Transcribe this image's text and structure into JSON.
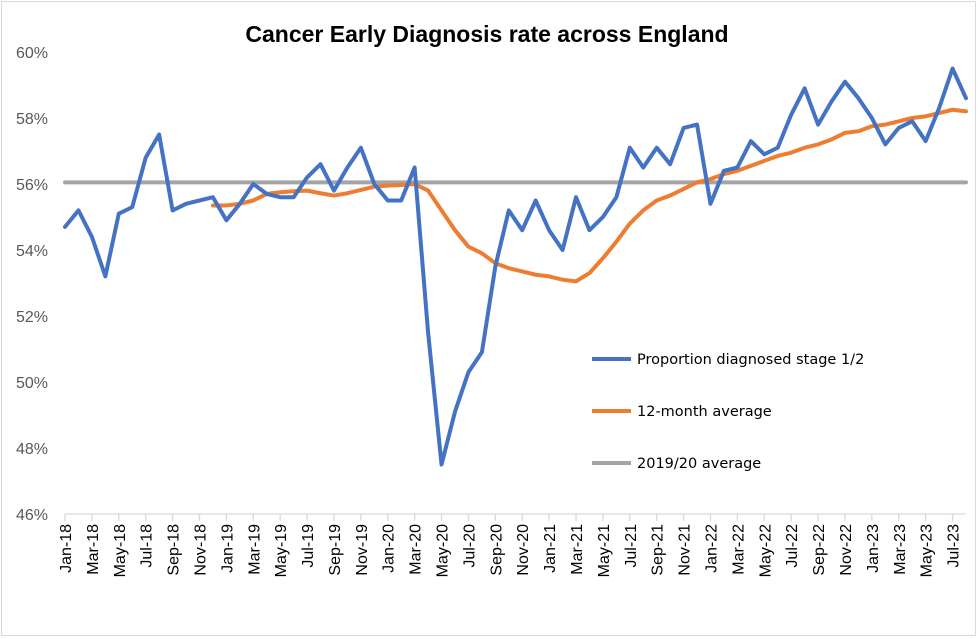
{
  "chart_data": {
    "type": "line",
    "title": "Cancer Early Diagnosis rate across England",
    "xlabel": "",
    "ylabel": "",
    "ylim": [
      46,
      60
    ],
    "yticks": [
      "46%",
      "48%",
      "50%",
      "52%",
      "54%",
      "56%",
      "58%",
      "60%"
    ],
    "ytick_values": [
      46,
      48,
      50,
      52,
      54,
      56,
      58,
      60
    ],
    "x": [
      "Jan-18",
      "Feb-18",
      "Mar-18",
      "Apr-18",
      "May-18",
      "Jun-18",
      "Jul-18",
      "Aug-18",
      "Sep-18",
      "Oct-18",
      "Nov-18",
      "Dec-18",
      "Jan-19",
      "Feb-19",
      "Mar-19",
      "Apr-19",
      "May-19",
      "Jun-19",
      "Jul-19",
      "Aug-19",
      "Sep-19",
      "Oct-19",
      "Nov-19",
      "Dec-19",
      "Jan-20",
      "Feb-20",
      "Mar-20",
      "Apr-20",
      "May-20",
      "Jun-20",
      "Jul-20",
      "Aug-20",
      "Sep-20",
      "Oct-20",
      "Nov-20",
      "Dec-20",
      "Jan-21",
      "Feb-21",
      "Mar-21",
      "Apr-21",
      "May-21",
      "Jun-21",
      "Jul-21",
      "Aug-21",
      "Sep-21",
      "Oct-21",
      "Nov-21",
      "Dec-21",
      "Jan-22",
      "Feb-22",
      "Mar-22",
      "Apr-22",
      "May-22",
      "Jun-22",
      "Jul-22",
      "Aug-22",
      "Sep-22",
      "Oct-22",
      "Nov-22",
      "Dec-22",
      "Jan-23",
      "Feb-23",
      "Mar-23",
      "Apr-23",
      "May-23",
      "Jun-23",
      "Jul-23",
      "Aug-23"
    ],
    "xtick_labels": [
      "Jan-18",
      "Mar-18",
      "May-18",
      "Jul-18",
      "Sep-18",
      "Nov-18",
      "Jan-19",
      "Mar-19",
      "May-19",
      "Jul-19",
      "Sep-19",
      "Nov-19",
      "Jan-20",
      "Mar-20",
      "May-20",
      "Jul-20",
      "Sep-20",
      "Nov-20",
      "Jan-21",
      "Mar-21",
      "May-21",
      "Jul-21",
      "Sep-21",
      "Nov-21",
      "Jan-22",
      "Mar-22",
      "May-22",
      "Jul-22",
      "Sep-22",
      "Nov-22",
      "Jan-23",
      "Mar-23",
      "May-23",
      "Jul-23"
    ],
    "series": [
      {
        "name": "Proportion diagnosed stage 1/2",
        "color": "#4472c4",
        "values": [
          54.7,
          55.2,
          54.4,
          53.2,
          55.1,
          55.3,
          56.8,
          57.5,
          55.2,
          55.4,
          55.5,
          55.6,
          54.9,
          55.4,
          56.0,
          55.7,
          55.6,
          55.6,
          56.2,
          56.6,
          55.8,
          56.5,
          57.1,
          56.0,
          55.5,
          55.5,
          56.5,
          51.5,
          47.5,
          49.1,
          50.3,
          50.9,
          53.5,
          55.2,
          54.6,
          55.5,
          54.6,
          54.0,
          55.6,
          54.6,
          55.0,
          55.6,
          57.1,
          56.5,
          57.1,
          56.6,
          57.7,
          57.8,
          55.4,
          56.4,
          56.5,
          57.3,
          56.9,
          57.1,
          58.1,
          58.9,
          57.8,
          58.5,
          59.1,
          58.6,
          58.0,
          57.2,
          57.7,
          57.9,
          57.3,
          58.3,
          59.5,
          58.6
        ]
      },
      {
        "name": "12-month average",
        "color": "#ed7d31",
        "values": [
          null,
          null,
          null,
          null,
          null,
          null,
          null,
          null,
          null,
          null,
          null,
          55.35,
          55.35,
          55.4,
          55.5,
          55.7,
          55.75,
          55.78,
          55.8,
          55.72,
          55.65,
          55.72,
          55.82,
          55.92,
          55.95,
          55.97,
          56.0,
          55.8,
          55.2,
          54.6,
          54.1,
          53.9,
          53.6,
          53.45,
          53.35,
          53.25,
          53.2,
          53.1,
          53.05,
          53.3,
          53.75,
          54.25,
          54.8,
          55.2,
          55.5,
          55.65,
          55.85,
          56.05,
          56.15,
          56.3,
          56.4,
          56.55,
          56.7,
          56.85,
          56.95,
          57.1,
          57.2,
          57.35,
          57.55,
          57.6,
          57.75,
          57.8,
          57.9,
          58.0,
          58.05,
          58.15,
          58.25,
          58.2
        ]
      },
      {
        "name": "2019/20 average",
        "color": "#a5a5a5",
        "values": [
          56.05,
          56.05,
          56.05,
          56.05,
          56.05,
          56.05,
          56.05,
          56.05,
          56.05,
          56.05,
          56.05,
          56.05,
          56.05,
          56.05,
          56.05,
          56.05,
          56.05,
          56.05,
          56.05,
          56.05,
          56.05,
          56.05,
          56.05,
          56.05,
          56.05,
          56.05,
          56.05,
          56.05,
          56.05,
          56.05,
          56.05,
          56.05,
          56.05,
          56.05,
          56.05,
          56.05,
          56.05,
          56.05,
          56.05,
          56.05,
          56.05,
          56.05,
          56.05,
          56.05,
          56.05,
          56.05,
          56.05,
          56.05,
          56.05,
          56.05,
          56.05,
          56.05,
          56.05,
          56.05,
          56.05,
          56.05,
          56.05,
          56.05,
          56.05,
          56.05,
          56.05,
          56.05,
          56.05,
          56.05,
          56.05,
          56.05,
          56.05,
          56.05
        ]
      }
    ],
    "grid": false,
    "legend_position": "inside-right"
  },
  "axis_color": "#d9d9d9"
}
